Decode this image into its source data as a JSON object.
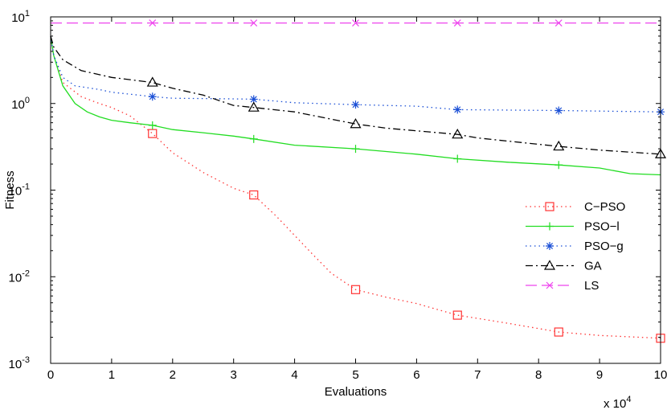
{
  "chart_data": {
    "type": "line",
    "xlabel": "Evaluations",
    "ylabel": "Fitness",
    "x_multiplier_label": "x 10",
    "x_multiplier_exp": "4",
    "xlim": [
      0,
      10
    ],
    "ylim": [
      0.001,
      10
    ],
    "yscale": "log",
    "xticks": [
      "0",
      "1",
      "2",
      "3",
      "4",
      "5",
      "6",
      "7",
      "8",
      "9",
      "10"
    ],
    "yticks": [
      {
        "base": "10",
        "exp": "-3",
        "value": 0.001
      },
      {
        "base": "10",
        "exp": "-2",
        "value": 0.01
      },
      {
        "base": "10",
        "exp": "-1",
        "value": 0.1
      },
      {
        "base": "10",
        "exp": "0",
        "value": 1
      },
      {
        "base": "10",
        "exp": "1",
        "value": 10
      }
    ],
    "grid": false,
    "legend_position": "right",
    "series": [
      {
        "name": "C−PSO",
        "color": "#ff3333",
        "dash": "1.5,4",
        "marker": "square",
        "x": [
          0,
          0.05,
          0.2,
          0.5,
          0.8,
          1.0,
          1.3,
          1.67,
          2.0,
          2.5,
          3.0,
          3.33,
          3.7,
          4.0,
          4.3,
          4.6,
          5.0,
          5.5,
          6.0,
          6.67,
          7.5,
          8.33,
          9.0,
          10.0
        ],
        "y": [
          6.0,
          3.6,
          1.75,
          1.2,
          1.0,
          0.9,
          0.72,
          0.45,
          0.27,
          0.16,
          0.105,
          0.088,
          0.05,
          0.03,
          0.018,
          0.011,
          0.0071,
          0.0058,
          0.0049,
          0.0036,
          0.0029,
          0.0023,
          0.0021,
          0.00195
        ],
        "marker_x": [
          1.67,
          3.33,
          5.0,
          6.67,
          8.33,
          10.0
        ],
        "marker_y": [
          0.45,
          0.088,
          0.0071,
          0.0036,
          0.0023,
          0.00195
        ]
      },
      {
        "name": "PSO−l",
        "color": "#22dd22",
        "dash": "",
        "marker": "plus",
        "x": [
          0,
          0.05,
          0.2,
          0.4,
          0.6,
          0.8,
          1.0,
          1.3,
          1.67,
          2.0,
          2.5,
          3.0,
          3.33,
          4.0,
          5.0,
          6.0,
          6.67,
          7.5,
          8.33,
          9.0,
          9.5,
          10.0
        ],
        "y": [
          6.0,
          3.6,
          1.6,
          1.0,
          0.8,
          0.7,
          0.64,
          0.6,
          0.56,
          0.5,
          0.46,
          0.42,
          0.39,
          0.33,
          0.3,
          0.26,
          0.23,
          0.21,
          0.195,
          0.18,
          0.155,
          0.15
        ],
        "marker_x": [
          1.67,
          3.33,
          5.0,
          6.67,
          8.33
        ],
        "marker_y": [
          0.56,
          0.39,
          0.3,
          0.23,
          0.195
        ]
      },
      {
        "name": "PSO−g",
        "color": "#1a4fd6",
        "dash": "1.5,4",
        "marker": "asterisk",
        "x": [
          0,
          0.05,
          0.2,
          0.4,
          0.8,
          1.0,
          1.67,
          2.0,
          3.0,
          3.33,
          4.0,
          5.0,
          6.0,
          6.67,
          8.33,
          10.0
        ],
        "y": [
          6.0,
          3.6,
          2.0,
          1.6,
          1.45,
          1.35,
          1.2,
          1.15,
          1.13,
          1.12,
          1.02,
          0.97,
          0.93,
          0.85,
          0.83,
          0.8
        ],
        "marker_x": [
          1.67,
          3.33,
          5.0,
          6.67,
          8.33,
          10.0
        ],
        "marker_y": [
          1.2,
          1.12,
          0.97,
          0.85,
          0.83,
          0.8
        ]
      },
      {
        "name": "GA",
        "color": "#000000",
        "dash": "9,4,2,4",
        "marker": "triangle",
        "x": [
          0,
          0.05,
          0.2,
          0.5,
          1.0,
          1.67,
          2.0,
          2.5,
          3.0,
          3.33,
          4.0,
          5.0,
          5.5,
          6.67,
          7.0,
          8.33,
          9.0,
          10.0
        ],
        "y": [
          6.0,
          4.5,
          3.2,
          2.4,
          2.0,
          1.75,
          1.5,
          1.25,
          0.95,
          0.9,
          0.8,
          0.58,
          0.52,
          0.44,
          0.4,
          0.32,
          0.29,
          0.26
        ],
        "marker_x": [
          1.67,
          3.33,
          5.0,
          6.67,
          8.33,
          10.0
        ],
        "marker_y": [
          1.75,
          0.9,
          0.58,
          0.44,
          0.32,
          0.26
        ]
      },
      {
        "name": "LS",
        "color": "#ee44ee",
        "dash": "14,6",
        "marker": "cross",
        "x": [
          0,
          10.0
        ],
        "y": [
          8.5,
          8.5
        ],
        "marker_x": [
          1.67,
          3.33,
          5.0,
          6.67,
          8.33
        ],
        "marker_y": [
          8.5,
          8.5,
          8.5,
          8.5,
          8.5
        ]
      }
    ]
  }
}
